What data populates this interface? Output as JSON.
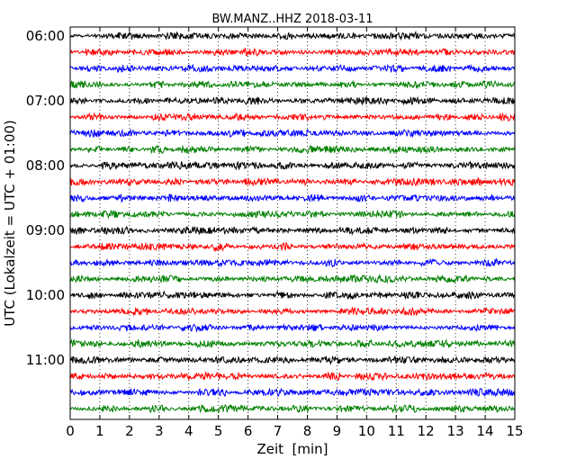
{
  "chart_data": {
    "type": "line",
    "title": "BW.MANZ..HHZ 2018-03-11",
    "xlabel": "Zeit  [min]",
    "ylabel": "UTC (Lokalzeit = UTC + 01:00)",
    "xlim": [
      0,
      15
    ],
    "x_ticks": [
      0,
      1,
      2,
      3,
      4,
      5,
      6,
      7,
      8,
      9,
      10,
      11,
      12,
      13,
      14,
      15
    ],
    "x_tick_labels": [
      "0",
      "1",
      "2",
      "3",
      "4",
      "5",
      "6",
      "7",
      "8",
      "9",
      "10",
      "11",
      "12",
      "13",
      "14",
      "15"
    ],
    "y_tick_labels": [
      "06:00",
      "07:00",
      "08:00",
      "09:00",
      "10:00",
      "11:00"
    ],
    "grid": "vertical, dotted",
    "line_start_times": [
      "06:00",
      "06:15",
      "06:30",
      "06:45",
      "07:00",
      "07:15",
      "07:30",
      "07:45",
      "08:00",
      "08:15",
      "08:30",
      "08:45",
      "09:00",
      "09:15",
      "09:30",
      "09:45",
      "10:00",
      "10:15",
      "10:30",
      "10:45",
      "11:00",
      "11:15",
      "11:30",
      "11:45"
    ],
    "trace_color_cycle": [
      "#000000",
      "#ff0000",
      "#0000ff",
      "#008000"
    ],
    "trace_duration_min": 15
  }
}
